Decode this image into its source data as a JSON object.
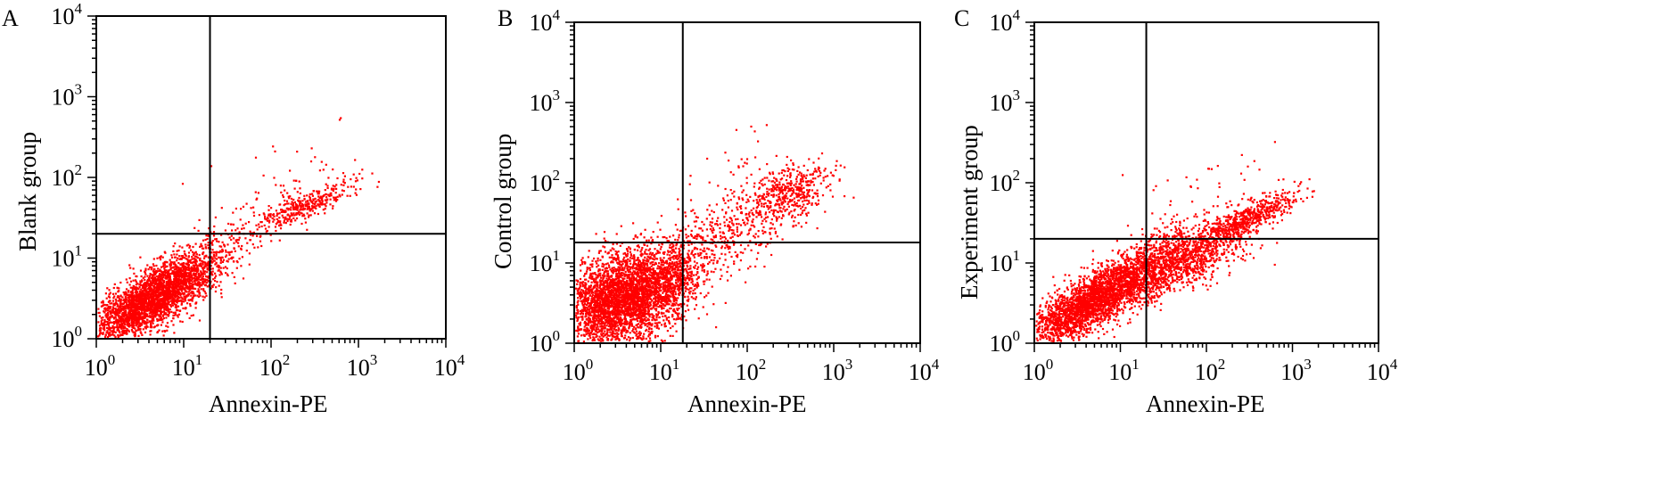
{
  "chart_data": [
    {
      "type": "scatter",
      "panel_label": "A",
      "xlabel": "Annexin-PE",
      "ylabel": "Blank group",
      "xscale": "log",
      "yscale": "log",
      "xlim": [
        1,
        10000
      ],
      "ylim": [
        1,
        10000
      ],
      "x_ticks": [
        "10^0",
        "10^1",
        "10^2",
        "10^3",
        "10^4"
      ],
      "y_ticks": [
        "10^0",
        "10^1",
        "10^2",
        "10^3",
        "10^4"
      ],
      "quadrant_gate": {
        "x": 20,
        "y": 20
      },
      "point_color": "#ff0000",
      "populations": [
        {
          "center": [
            4,
            3
          ],
          "spread": [
            0.33,
            0.26
          ],
          "corr": 0.72,
          "count": 2600
        },
        {
          "center": [
            12,
            6
          ],
          "spread": [
            0.25,
            0.22
          ],
          "corr": 0.6,
          "count": 450
        },
        {
          "center": [
            35,
            14
          ],
          "spread": [
            0.38,
            0.3
          ],
          "corr": 0.7,
          "count": 120
        },
        {
          "center": [
            250,
            45
          ],
          "spread": [
            0.3,
            0.15
          ],
          "corr": 0.85,
          "count": 350
        },
        {
          "center": [
            150,
            60
          ],
          "spread": [
            0.45,
            0.35
          ],
          "corr": 0.4,
          "count": 60
        }
      ]
    },
    {
      "type": "scatter",
      "panel_label": "B",
      "xlabel": "Annexin-PE",
      "ylabel": "Control group",
      "xscale": "log",
      "yscale": "log",
      "xlim": [
        1,
        10000
      ],
      "ylim": [
        1,
        10000
      ],
      "x_ticks": [
        "10^0",
        "10^1",
        "10^2",
        "10^3",
        "10^4"
      ],
      "y_ticks": [
        "10^0",
        "10^1",
        "10^2",
        "10^3",
        "10^4"
      ],
      "quadrant_gate": {
        "x": 18,
        "y": 18
      },
      "point_color": "#ff0000",
      "populations": [
        {
          "center": [
            3.5,
            3.5
          ],
          "spread": [
            0.35,
            0.3
          ],
          "corr": 0.3,
          "count": 3400
        },
        {
          "center": [
            12,
            6
          ],
          "spread": [
            0.2,
            0.25
          ],
          "corr": 0.4,
          "count": 500
        },
        {
          "center": [
            50,
            20
          ],
          "spread": [
            0.4,
            0.35
          ],
          "corr": 0.6,
          "count": 380
        },
        {
          "center": [
            300,
            70
          ],
          "spread": [
            0.25,
            0.2
          ],
          "corr": 0.4,
          "count": 450
        },
        {
          "center": [
            100,
            80
          ],
          "spread": [
            0.4,
            0.35
          ],
          "corr": 0.3,
          "count": 80
        }
      ]
    },
    {
      "type": "scatter",
      "panel_label": "C",
      "xlabel": "Annexin-PE",
      "ylabel": "Experiment group",
      "xscale": "log",
      "yscale": "log",
      "xlim": [
        1,
        10000
      ],
      "ylim": [
        1,
        10000
      ],
      "x_ticks": [
        "10^0",
        "10^1",
        "10^2",
        "10^3",
        "10^4"
      ],
      "y_ticks": [
        "10^0",
        "10^1",
        "10^2",
        "10^3",
        "10^4"
      ],
      "quadrant_gate": {
        "x": 20,
        "y": 20
      },
      "point_color": "#ff0000",
      "populations": [
        {
          "center": [
            4,
            3
          ],
          "spread": [
            0.33,
            0.25
          ],
          "corr": 0.72,
          "count": 2200
        },
        {
          "center": [
            20,
            8
          ],
          "spread": [
            0.3,
            0.25
          ],
          "corr": 0.65,
          "count": 1200
        },
        {
          "center": [
            80,
            12
          ],
          "spread": [
            0.3,
            0.22
          ],
          "corr": 0.6,
          "count": 600
        },
        {
          "center": [
            300,
            35
          ],
          "spread": [
            0.3,
            0.18
          ],
          "corr": 0.85,
          "count": 550
        },
        {
          "center": [
            100,
            40
          ],
          "spread": [
            0.45,
            0.3
          ],
          "corr": 0.3,
          "count": 80
        }
      ]
    }
  ]
}
